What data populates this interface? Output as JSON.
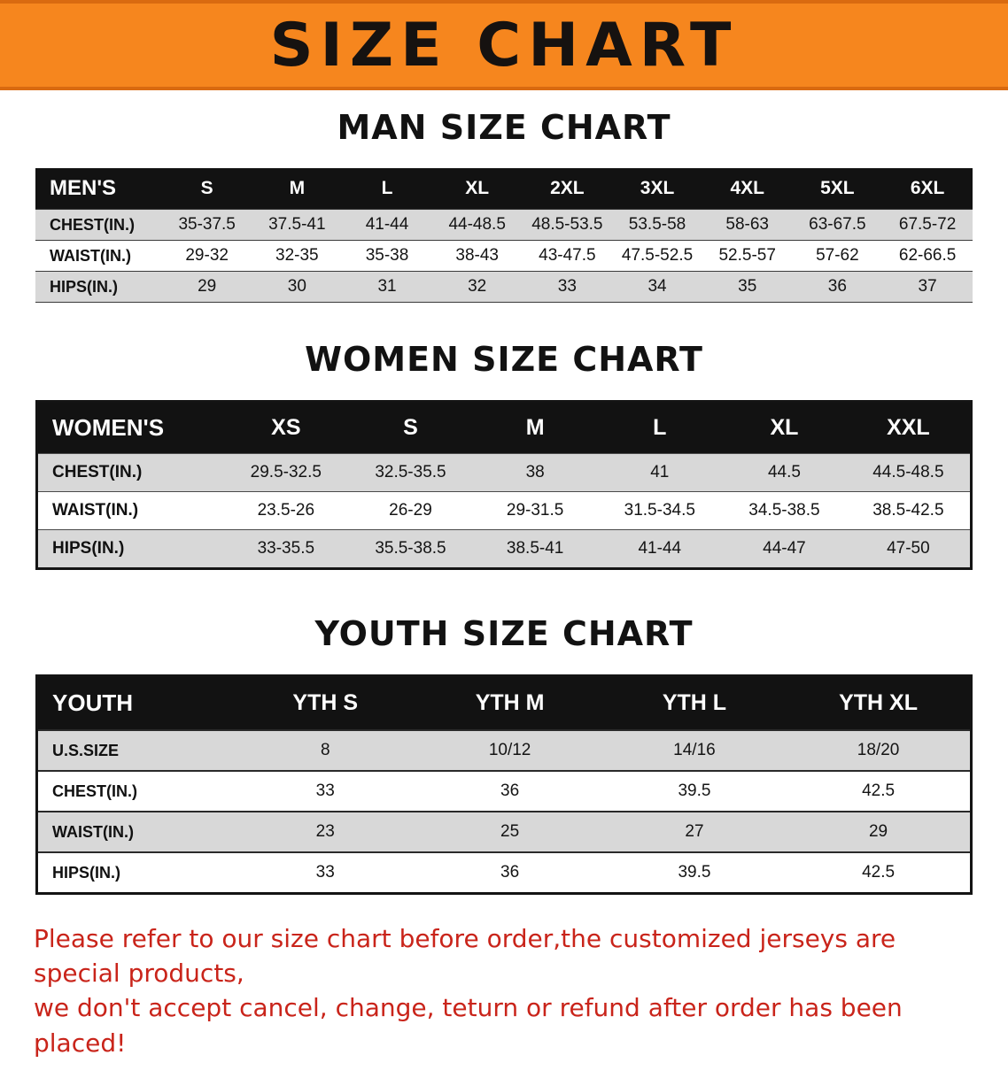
{
  "banner": {
    "title": "SIZE CHART"
  },
  "colors": {
    "banner": "#F6861E",
    "banner_edge": "#D96A10",
    "table_header": "#121212",
    "stripe": "#D8D8D8",
    "notice": "#C9241A",
    "text": "#111111"
  },
  "sections": [
    {
      "title": "MAN SIZE CHART",
      "table": {
        "corner": "MEN'S",
        "sizes": [
          "S",
          "M",
          "L",
          "XL",
          "2XL",
          "3XL",
          "4XL",
          "5XL",
          "6XL"
        ],
        "rows": [
          {
            "label": "CHEST(IN.)",
            "values": [
              "35-37.5",
              "37.5-41",
              "41-44",
              "44-48.5",
              "48.5-53.5",
              "53.5-58",
              "58-63",
              "63-67.5",
              "67.5-72"
            ]
          },
          {
            "label": "WAIST(IN.)",
            "values": [
              "29-32",
              "32-35",
              "35-38",
              "38-43",
              "43-47.5",
              "47.5-52.5",
              "52.5-57",
              "57-62",
              "62-66.5"
            ]
          },
          {
            "label": "HIPS(IN.)",
            "values": [
              "29",
              "30",
              "31",
              "32",
              "33",
              "34",
              "35",
              "36",
              "37"
            ]
          }
        ]
      }
    },
    {
      "title": "WOMEN SIZE CHART",
      "table": {
        "corner": "WOMEN'S",
        "sizes": [
          "XS",
          "S",
          "M",
          "L",
          "XL",
          "XXL"
        ],
        "rows": [
          {
            "label": "CHEST(IN.)",
            "values": [
              "29.5-32.5",
              "32.5-35.5",
              "38",
              "41",
              "44.5",
              "44.5-48.5"
            ]
          },
          {
            "label": "WAIST(IN.)",
            "values": [
              "23.5-26",
              "26-29",
              "29-31.5",
              "31.5-34.5",
              "34.5-38.5",
              "38.5-42.5"
            ]
          },
          {
            "label": "HIPS(IN.)",
            "values": [
              "33-35.5",
              "35.5-38.5",
              "38.5-41",
              "41-44",
              "44-47",
              "47-50"
            ]
          }
        ]
      }
    },
    {
      "title": "YOUTH SIZE CHART",
      "table": {
        "corner": "YOUTH",
        "sizes": [
          "YTH S",
          "YTH M",
          "YTH L",
          "YTH XL"
        ],
        "rows": [
          {
            "label": "U.S.SIZE",
            "values": [
              "8",
              "10/12",
              "14/16",
              "18/20"
            ]
          },
          {
            "label": "CHEST(IN.)",
            "values": [
              "33",
              "36",
              "39.5",
              "42.5"
            ]
          },
          {
            "label": "WAIST(IN.)",
            "values": [
              "23",
              "25",
              "27",
              "29"
            ]
          },
          {
            "label": "HIPS(IN.)",
            "values": [
              "33",
              "36",
              "39.5",
              "42.5"
            ]
          }
        ]
      }
    }
  ],
  "footer": {
    "line1": "Please refer to our size chart before order,the customized jerseys are special products,",
    "line2": "we don't accept cancel, change, teturn or refund after order has been placed!"
  }
}
